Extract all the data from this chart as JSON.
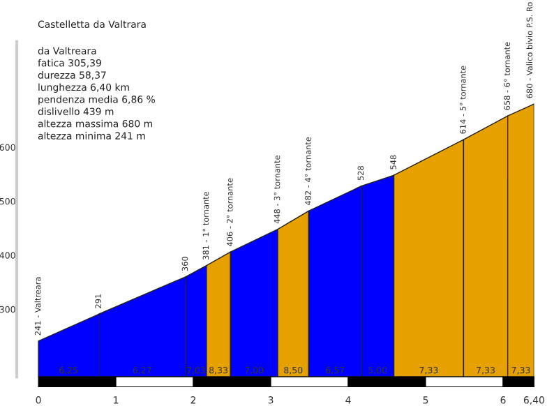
{
  "chart_data": {
    "type": "area",
    "title": "Castelletta da Valtrara",
    "xlim": [
      -0.28,
      6.4
    ],
    "xticks": [
      0,
      1,
      2,
      3,
      4,
      5,
      6,
      {
        "value": 6.4,
        "label": "6,40"
      }
    ],
    "ylim": [
      175,
      795
    ],
    "yticks": [
      300,
      400,
      500,
      600
    ],
    "grid": false,
    "series": [
      {
        "x": [
          0,
          0.78
        ],
        "values": [
          241,
          291
        ],
        "color": "#0000ff"
      },
      {
        "x": [
          0.78,
          1.9
        ],
        "values": [
          291,
          360
        ],
        "color": "#0000ff"
      },
      {
        "x": [
          1.9,
          2.17
        ],
        "values": [
          360,
          381
        ],
        "color": "#0000ff"
      },
      {
        "x": [
          2.17,
          2.48
        ],
        "values": [
          381,
          406
        ],
        "color": "#e6a000"
      },
      {
        "x": [
          2.48,
          3.09
        ],
        "values": [
          406,
          448
        ],
        "color": "#0000ff"
      },
      {
        "x": [
          3.09,
          3.49
        ],
        "values": [
          448,
          482
        ],
        "color": "#e6a000"
      },
      {
        "x": [
          3.49,
          4.17
        ],
        "values": [
          482,
          528
        ],
        "color": "#0000ff"
      },
      {
        "x": [
          4.17,
          4.59
        ],
        "values": [
          528,
          548
        ],
        "color": "#0000ff"
      },
      {
        "x": [
          4.59,
          5.49
        ],
        "values": [
          548,
          614
        ],
        "color": "#e6a000"
      },
      {
        "x": [
          5.49,
          6.06
        ],
        "values": [
          614,
          658
        ],
        "color": "#e6a000"
      },
      {
        "x": [
          6.06,
          6.4
        ],
        "values": [
          658,
          680
        ],
        "color": "#e6a000"
      }
    ],
    "annotations": [
      "da Valtreara",
      "fatica 305,39",
      "durezza 58,37",
      "lunghezza 6,40 km",
      "pendenza media 6,86 %",
      "dislivello 439 m",
      "altezza massima 680 m",
      "altezza minima 241 m",
      {
        "text": "241 - Valtreara",
        "x": 0,
        "y": 241
      },
      {
        "text": "291",
        "x": 0.78,
        "y": 291
      },
      {
        "text": "360",
        "x": 1.9,
        "y": 360
      },
      {
        "text": "381 - 1° tornante",
        "x": 2.17,
        "y": 381
      },
      {
        "text": "406 - 2° tornante",
        "x": 2.48,
        "y": 406
      },
      {
        "text": "448 - 3° tornante",
        "x": 3.09,
        "y": 448
      },
      {
        "text": "482 - 4° tornante",
        "x": 3.49,
        "y": 482
      },
      {
        "text": "528",
        "x": 4.17,
        "y": 528
      },
      {
        "text": "548",
        "x": 4.59,
        "y": 548
      },
      {
        "text": "614 - 5° tornante",
        "x": 5.49,
        "y": 614
      },
      {
        "text": "658 - 6° tornante",
        "x": 6.06,
        "y": 658
      },
      {
        "text": "680 - Valico bivio P.S. Ro",
        "x": 6.4,
        "y": 680
      },
      {
        "text": "6,25",
        "x": 0.39,
        "y": 175
      },
      {
        "text": "6,27",
        "x": 1.34,
        "y": 175
      },
      {
        "text": "7,03",
        "x": 2.035,
        "y": 175
      },
      {
        "text": "8,33",
        "x": 2.325,
        "y": 175
      },
      {
        "text": "7,00",
        "x": 2.785,
        "y": 175
      },
      {
        "text": "8,50",
        "x": 3.29,
        "y": 175
      },
      {
        "text": "6,57",
        "x": 3.83,
        "y": 175
      },
      {
        "text": "5,00",
        "x": 4.38,
        "y": 175
      },
      {
        "text": "7,33",
        "x": 5.04,
        "y": 175
      },
      {
        "text": "7,33",
        "x": 5.775,
        "y": 175
      },
      {
        "text": "7,33",
        "x": 6.23,
        "y": 175
      }
    ]
  }
}
